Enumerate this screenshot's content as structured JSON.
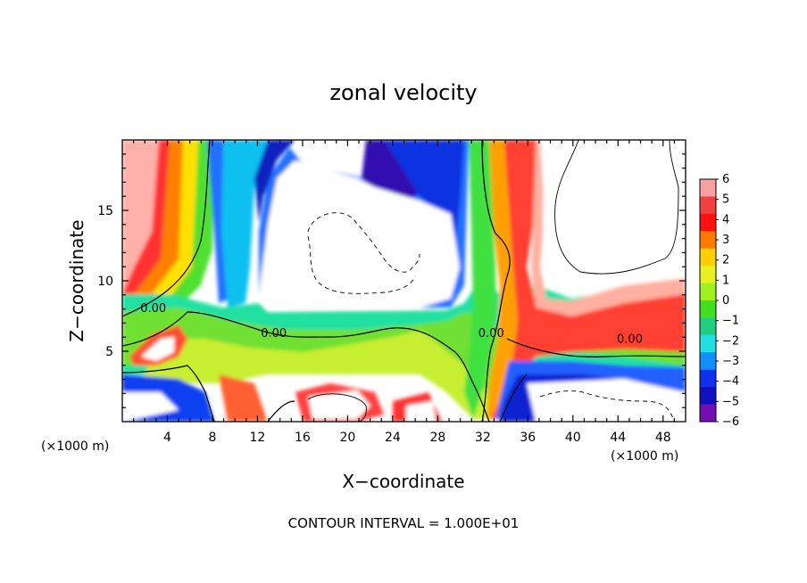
{
  "chart_data": {
    "type": "heatmap",
    "title": "zonal velocity",
    "xlabel": "X−coordinate",
    "ylabel": "Z−coordinate",
    "x_unit_left": "(×1000 m)",
    "x_unit_right": "(×1000 m)",
    "xlim": [
      0,
      50
    ],
    "ylim": [
      0,
      20
    ],
    "x_ticks": [
      "4",
      "8",
      "12",
      "16",
      "20",
      "24",
      "28",
      "32",
      "36",
      "40",
      "44",
      "48"
    ],
    "x_tick_values": [
      4,
      8,
      12,
      16,
      20,
      24,
      28,
      32,
      36,
      40,
      44,
      48
    ],
    "y_ticks": [
      "5",
      "10",
      "15"
    ],
    "y_tick_values": [
      5,
      10,
      15
    ],
    "colorbar_range": [
      -6,
      6
    ],
    "colorbar_labels": [
      "6",
      "5",
      "4",
      "3",
      "2",
      "1",
      "0",
      "−1",
      "−2",
      "−3",
      "−4",
      "−5",
      "−6"
    ],
    "colorbar_values": [
      6,
      5,
      4,
      3,
      2,
      1,
      0,
      -1,
      -2,
      -3,
      -4,
      -5,
      -6
    ],
    "colorbar_colors": [
      "#f7a0a0",
      "#f04040",
      "#ff1010",
      "#ff7a00",
      "#ffd000",
      "#e8f020",
      "#a0f020",
      "#40e020",
      "#20d080",
      "#20e0e0",
      "#1090ff",
      "#1030f0",
      "#1010c0",
      "#7010b0"
    ],
    "contour_labels": [
      {
        "text": "0.00",
        "x": 1.6,
        "y": 7.8
      },
      {
        "text": "0.00",
        "x": 12.3,
        "y": 6.0
      },
      {
        "text": "0.00",
        "x": 31.6,
        "y": 6.0
      },
      {
        "text": "0.00",
        "x": 43.9,
        "y": 5.6
      }
    ],
    "footer": "CONTOUR INTERVAL = 1.000E+01",
    "grid": false
  }
}
